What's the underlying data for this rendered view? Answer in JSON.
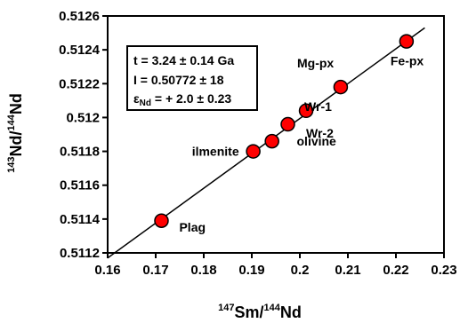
{
  "chart_data": {
    "type": "scatter",
    "title": "",
    "xlabel": {
      "sup1": "147",
      "base1": "Sm/",
      "sup2": "144",
      "base2": "Nd"
    },
    "ylabel": {
      "sup1": "143",
      "base1": "Nd/",
      "sup2": "144",
      "base2": "Nd"
    },
    "xlim": [
      0.16,
      0.23
    ],
    "ylim": [
      0.5112,
      0.5126
    ],
    "x_ticks": [
      "0.16",
      "0.17",
      "0.18",
      "0.19",
      "0.2",
      "0.21",
      "0.22",
      "0.23"
    ],
    "y_ticks": [
      "0.5112",
      "0.5114",
      "0.5116",
      "0.5118",
      "0.512",
      "0.5122",
      "0.5124",
      "0.5126"
    ],
    "grid": false,
    "marker_color": "#ff0000",
    "points": [
      {
        "label": "Plag",
        "x": 0.1712,
        "y": 0.51139
      },
      {
        "label": "ilmenite",
        "x": 0.1903,
        "y": 0.5118
      },
      {
        "label": "",
        "x": 0.1942,
        "y": 0.51186
      },
      {
        "label": "olivine",
        "x": 0.1975,
        "y": 0.51196
      },
      {
        "label": "Wr-2",
        "x": 0.2013,
        "y": 0.51204
      },
      {
        "label": "Wr-1",
        "x": 0.2085,
        "y": 0.51218
      },
      {
        "label": "Mg-px",
        "x": null,
        "y": null
      },
      {
        "label": "Fe-px",
        "x": 0.2222,
        "y": 0.51245
      }
    ],
    "isochron": {
      "x1": 0.16,
      "y1": 0.51117,
      "x2": 0.226,
      "y2": 0.51253
    },
    "annotation": {
      "line1": "t = 3.24 ± 0.14 Ga",
      "line2": "I = 0.50772 ± 18",
      "line3_symbol": "ε",
      "line3_sub": "Nd",
      "line3_rest": " = + 2.0 ± 0.23"
    }
  }
}
